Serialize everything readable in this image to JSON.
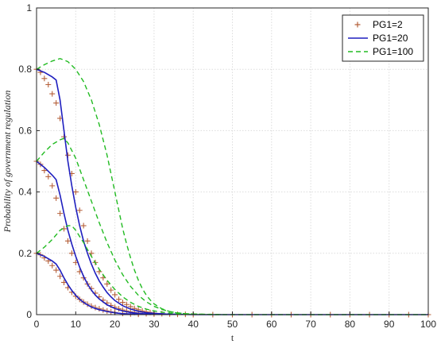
{
  "chart_data": {
    "type": "line",
    "xlabel": "t",
    "ylabel": "Probability of government regulation",
    "xlim": [
      0,
      100
    ],
    "ylim": [
      0,
      1
    ],
    "xticks": [
      0,
      10,
      20,
      30,
      40,
      50,
      60,
      70,
      80,
      90,
      100
    ],
    "yticks": [
      0,
      0.2,
      0.4,
      0.6,
      0.8,
      1
    ],
    "grid": true,
    "legend_position": "top-right",
    "series": [
      {
        "name": "PG1=2",
        "style": "plus-markers",
        "color": "#b5603a",
        "curves": [
          [
            [
              0,
              0.8
            ],
            [
              1,
              0.79
            ],
            [
              2,
              0.77
            ],
            [
              3,
              0.75
            ],
            [
              4,
              0.72
            ],
            [
              5,
              0.69
            ],
            [
              6,
              0.64
            ],
            [
              7,
              0.58
            ],
            [
              8,
              0.52
            ],
            [
              9,
              0.46
            ],
            [
              10,
              0.4
            ],
            [
              11,
              0.34
            ],
            [
              12,
              0.29
            ],
            [
              13,
              0.24
            ],
            [
              14,
              0.2
            ],
            [
              15,
              0.17
            ],
            [
              16,
              0.14
            ],
            [
              17,
              0.12
            ],
            [
              18,
              0.1
            ],
            [
              19,
              0.08
            ],
            [
              20,
              0.065
            ],
            [
              21,
              0.05
            ],
            [
              22,
              0.04
            ],
            [
              23,
              0.033
            ],
            [
              24,
              0.026
            ],
            [
              25,
              0.02
            ],
            [
              26,
              0.016
            ],
            [
              27,
              0.012
            ],
            [
              28,
              0.009
            ],
            [
              29,
              0.007
            ],
            [
              30,
              0.005
            ],
            [
              32,
              0.003
            ],
            [
              34,
              0.002
            ],
            [
              36,
              0.001
            ],
            [
              38,
              0.001
            ],
            [
              40,
              0.0
            ],
            [
              45,
              0
            ],
            [
              50,
              0
            ],
            [
              55,
              0
            ],
            [
              60,
              0
            ],
            [
              65,
              0
            ],
            [
              70,
              0
            ],
            [
              75,
              0
            ],
            [
              80,
              0
            ],
            [
              85,
              0
            ],
            [
              90,
              0
            ],
            [
              95,
              0
            ],
            [
              100,
              0
            ]
          ],
          [
            [
              0,
              0.5
            ],
            [
              1,
              0.49
            ],
            [
              2,
              0.47
            ],
            [
              3,
              0.45
            ],
            [
              4,
              0.42
            ],
            [
              5,
              0.38
            ],
            [
              6,
              0.33
            ],
            [
              7,
              0.28
            ],
            [
              8,
              0.24
            ],
            [
              9,
              0.2
            ],
            [
              10,
              0.17
            ],
            [
              11,
              0.14
            ],
            [
              12,
              0.12
            ],
            [
              13,
              0.1
            ],
            [
              14,
              0.085
            ],
            [
              15,
              0.07
            ],
            [
              16,
              0.058
            ],
            [
              17,
              0.047
            ],
            [
              18,
              0.038
            ],
            [
              19,
              0.03
            ],
            [
              20,
              0.024
            ],
            [
              21,
              0.019
            ],
            [
              22,
              0.015
            ],
            [
              23,
              0.012
            ],
            [
              24,
              0.009
            ],
            [
              25,
              0.007
            ],
            [
              26,
              0.005
            ],
            [
              28,
              0.003
            ],
            [
              30,
              0.002
            ]
          ],
          [
            [
              0,
              0.2
            ],
            [
              1,
              0.195
            ],
            [
              2,
              0.185
            ],
            [
              3,
              0.175
            ],
            [
              4,
              0.16
            ],
            [
              5,
              0.145
            ],
            [
              6,
              0.125
            ],
            [
              7,
              0.105
            ],
            [
              8,
              0.088
            ],
            [
              9,
              0.073
            ],
            [
              10,
              0.06
            ],
            [
              11,
              0.05
            ],
            [
              12,
              0.041
            ],
            [
              13,
              0.034
            ],
            [
              14,
              0.028
            ],
            [
              15,
              0.023
            ],
            [
              16,
              0.019
            ],
            [
              17,
              0.015
            ],
            [
              18,
              0.012
            ],
            [
              19,
              0.009
            ],
            [
              20,
              0.007
            ],
            [
              22,
              0.004
            ],
            [
              24,
              0.002
            ],
            [
              26,
              0.001
            ]
          ]
        ]
      },
      {
        "name": "PG1=20",
        "style": "solid",
        "color": "#1f1fbf",
        "curves": [
          [
            [
              0,
              0.8
            ],
            [
              2,
              0.79
            ],
            [
              4,
              0.775
            ],
            [
              5,
              0.765
            ],
            [
              6,
              0.7
            ],
            [
              7,
              0.6
            ],
            [
              8,
              0.5
            ],
            [
              9,
              0.42
            ],
            [
              10,
              0.35
            ],
            [
              11,
              0.29
            ],
            [
              12,
              0.24
            ],
            [
              13,
              0.2
            ],
            [
              14,
              0.165
            ],
            [
              15,
              0.135
            ],
            [
              16,
              0.11
            ],
            [
              17,
              0.09
            ],
            [
              18,
              0.072
            ],
            [
              19,
              0.058
            ],
            [
              20,
              0.046
            ],
            [
              22,
              0.029
            ],
            [
              24,
              0.018
            ],
            [
              26,
              0.011
            ],
            [
              28,
              0.006
            ],
            [
              30,
              0.004
            ],
            [
              33,
              0.002
            ],
            [
              36,
              0.001
            ],
            [
              40,
              0
            ],
            [
              100,
              0
            ]
          ],
          [
            [
              0,
              0.5
            ],
            [
              2,
              0.48
            ],
            [
              4,
              0.455
            ],
            [
              5,
              0.44
            ],
            [
              6,
              0.39
            ],
            [
              7,
              0.33
            ],
            [
              8,
              0.275
            ],
            [
              9,
              0.23
            ],
            [
              10,
              0.19
            ],
            [
              11,
              0.155
            ],
            [
              12,
              0.125
            ],
            [
              13,
              0.1
            ],
            [
              14,
              0.08
            ],
            [
              15,
              0.064
            ],
            [
              16,
              0.051
            ],
            [
              18,
              0.032
            ],
            [
              20,
              0.02
            ],
            [
              22,
              0.012
            ],
            [
              24,
              0.007
            ],
            [
              26,
              0.004
            ],
            [
              28,
              0.002
            ],
            [
              30,
              0.001
            ]
          ],
          [
            [
              0,
              0.2
            ],
            [
              2,
              0.19
            ],
            [
              4,
              0.175
            ],
            [
              5,
              0.165
            ],
            [
              6,
              0.145
            ],
            [
              7,
              0.12
            ],
            [
              8,
              0.098
            ],
            [
              9,
              0.079
            ],
            [
              10,
              0.063
            ],
            [
              11,
              0.05
            ],
            [
              12,
              0.04
            ],
            [
              13,
              0.032
            ],
            [
              14,
              0.025
            ],
            [
              15,
              0.02
            ],
            [
              16,
              0.016
            ],
            [
              18,
              0.01
            ],
            [
              20,
              0.006
            ],
            [
              22,
              0.003
            ],
            [
              24,
              0.002
            ],
            [
              26,
              0.001
            ]
          ]
        ]
      },
      {
        "name": "PG1=100",
        "style": "dashed",
        "color": "#22bb22",
        "curves": [
          [
            [
              0,
              0.8
            ],
            [
              2,
              0.815
            ],
            [
              4,
              0.827
            ],
            [
              6,
              0.835
            ],
            [
              8,
              0.825
            ],
            [
              10,
              0.8
            ],
            [
              12,
              0.76
            ],
            [
              14,
              0.7
            ],
            [
              16,
              0.62
            ],
            [
              18,
              0.52
            ],
            [
              19,
              0.46
            ],
            [
              20,
              0.4
            ],
            [
              21,
              0.34
            ],
            [
              22,
              0.28
            ],
            [
              23,
              0.23
            ],
            [
              24,
              0.185
            ],
            [
              25,
              0.145
            ],
            [
              26,
              0.112
            ],
            [
              27,
              0.085
            ],
            [
              28,
              0.064
            ],
            [
              29,
              0.048
            ],
            [
              30,
              0.035
            ],
            [
              32,
              0.019
            ],
            [
              34,
              0.01
            ],
            [
              36,
              0.005
            ],
            [
              38,
              0.003
            ],
            [
              40,
              0.002
            ],
            [
              42,
              0.001
            ],
            [
              45,
              0
            ],
            [
              100,
              0
            ]
          ],
          [
            [
              0,
              0.5
            ],
            [
              2,
              0.53
            ],
            [
              4,
              0.555
            ],
            [
              6,
              0.57
            ],
            [
              7,
              0.575
            ],
            [
              8,
              0.56
            ],
            [
              10,
              0.51
            ],
            [
              12,
              0.44
            ],
            [
              14,
              0.37
            ],
            [
              16,
              0.3
            ],
            [
              18,
              0.235
            ],
            [
              20,
              0.178
            ],
            [
              22,
              0.13
            ],
            [
              24,
              0.092
            ],
            [
              26,
              0.063
            ],
            [
              28,
              0.042
            ],
            [
              30,
              0.027
            ],
            [
              32,
              0.017
            ],
            [
              34,
              0.01
            ],
            [
              36,
              0.006
            ],
            [
              38,
              0.003
            ],
            [
              40,
              0.002
            ],
            [
              44,
              0.001
            ],
            [
              48,
              0
            ]
          ],
          [
            [
              0,
              0.2
            ],
            [
              2,
              0.22
            ],
            [
              4,
              0.245
            ],
            [
              6,
              0.275
            ],
            [
              8,
              0.29
            ],
            [
              9,
              0.29
            ],
            [
              10,
              0.275
            ],
            [
              12,
              0.235
            ],
            [
              14,
              0.19
            ],
            [
              16,
              0.148
            ],
            [
              18,
              0.112
            ],
            [
              20,
              0.082
            ],
            [
              22,
              0.058
            ],
            [
              24,
              0.04
            ],
            [
              26,
              0.027
            ],
            [
              28,
              0.018
            ],
            [
              30,
              0.012
            ],
            [
              32,
              0.008
            ],
            [
              34,
              0.005
            ],
            [
              36,
              0.003
            ],
            [
              38,
              0.002
            ],
            [
              42,
              0.001
            ],
            [
              46,
              0
            ]
          ]
        ]
      }
    ]
  }
}
